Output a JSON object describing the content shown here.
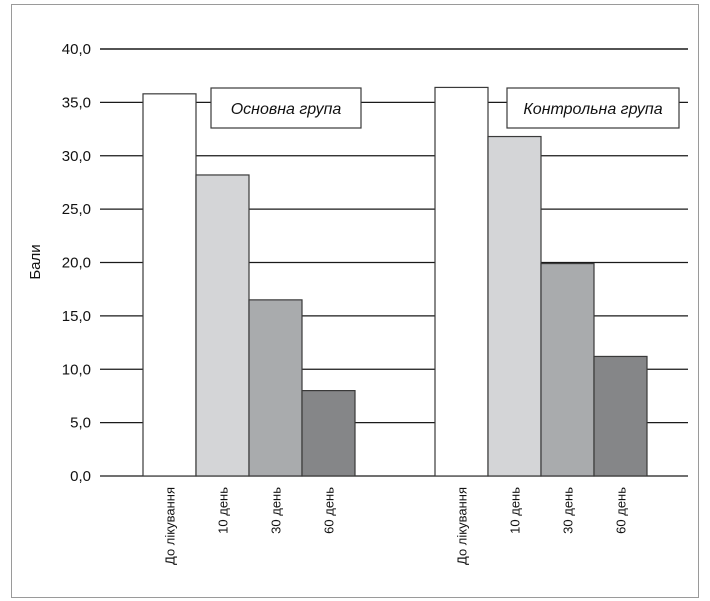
{
  "chart_data": {
    "type": "bar",
    "title": "",
    "xlabel": "",
    "ylabel": "Бали",
    "ylim": [
      0,
      40
    ],
    "yticks": [
      "0,0",
      "5,0",
      "10,0",
      "15,0",
      "20,0",
      "25,0",
      "30,0",
      "35,0",
      "40,0"
    ],
    "ytick_values": [
      0,
      5,
      10,
      15,
      20,
      25,
      30,
      35,
      40
    ],
    "grid": true,
    "categories": [
      "До лікування",
      "10 день",
      "30 день",
      "60 день"
    ],
    "category_colors": [
      "#ffffff",
      "#d4d5d7",
      "#a9abad",
      "#858688"
    ],
    "groups": [
      {
        "name": "Основна група",
        "values": [
          35.8,
          28.2,
          16.5,
          8.0
        ]
      },
      {
        "name": "Контрольна група",
        "values": [
          36.4,
          31.8,
          19.9,
          11.2
        ]
      }
    ]
  }
}
